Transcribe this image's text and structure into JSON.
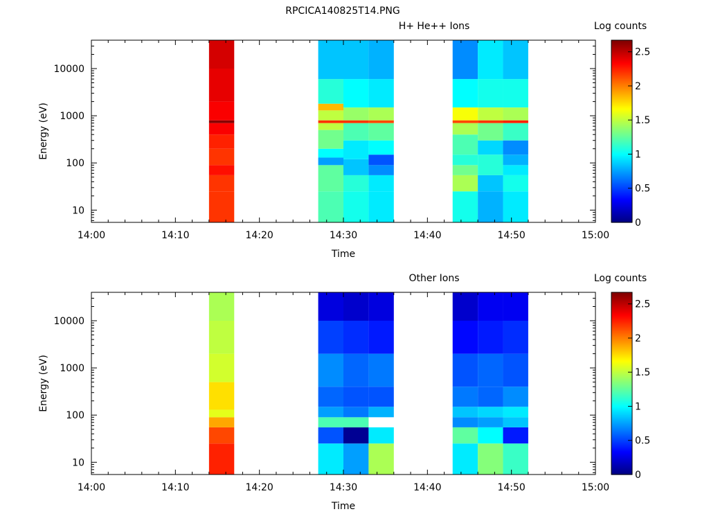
{
  "figure_title": "RPCICA140825T14.PNG",
  "chart_data": [
    {
      "type": "heatmap",
      "title": "H+ He++ Ions",
      "xlabel": "Time",
      "ylabel": "Energy (eV)",
      "x_ticks": [
        "14:00",
        "14:10",
        "14:20",
        "14:30",
        "14:40",
        "14:50",
        "15:00"
      ],
      "y_ticks": [
        "10",
        "100",
        "1000",
        "10000"
      ],
      "y_scale": "log",
      "ylim": [
        5.5,
        40000
      ],
      "colorbar": {
        "label": "Log counts",
        "range": [
          0,
          2.67
        ],
        "ticks": [
          "0",
          "0.5",
          "1",
          "1.5",
          "2",
          "2.5"
        ]
      },
      "columns": [
        {
          "start": "14:14",
          "end": "14:17",
          "bands": [
            [
              5.5,
              25,
              2.2
            ],
            [
              25,
              55,
              2.2
            ],
            [
              55,
              90,
              2.3
            ],
            [
              90,
              200,
              2.2
            ],
            [
              200,
              400,
              2.25
            ],
            [
              400,
              700,
              2.35
            ],
            [
              700,
              800,
              2.65
            ],
            [
              800,
              2000,
              2.35
            ],
            [
              2000,
              10000,
              2.4
            ],
            [
              10000,
              40000,
              2.45
            ]
          ]
        },
        {
          "start": "14:27",
          "end": "14:30",
          "bands": [
            [
              5.5,
              25,
              1.2
            ],
            [
              25,
              90,
              1.25
            ],
            [
              90,
              130,
              0.75
            ],
            [
              130,
              200,
              1.0
            ],
            [
              200,
              500,
              1.3
            ],
            [
              500,
              700,
              1.5
            ],
            [
              700,
              800,
              2.2
            ],
            [
              800,
              1300,
              1.5
            ],
            [
              1300,
              1800,
              1.85
            ],
            [
              1800,
              6000,
              1.1
            ],
            [
              6000,
              40000,
              0.85
            ]
          ]
        },
        {
          "start": "14:30",
          "end": "14:33",
          "bands": [
            [
              5.5,
              25,
              1.05
            ],
            [
              25,
              55,
              1.1
            ],
            [
              55,
              120,
              0.85
            ],
            [
              120,
              300,
              0.95
            ],
            [
              300,
              700,
              1.2
            ],
            [
              700,
              800,
              2.2
            ],
            [
              800,
              1500,
              1.4
            ],
            [
              1500,
              6000,
              1.0
            ],
            [
              6000,
              40000,
              0.85
            ]
          ]
        },
        {
          "start": "14:33",
          "end": "14:36",
          "bands": [
            [
              5.5,
              25,
              0.95
            ],
            [
              25,
              55,
              0.95
            ],
            [
              55,
              90,
              0.7
            ],
            [
              90,
              150,
              0.55
            ],
            [
              150,
              300,
              1.0
            ],
            [
              300,
              700,
              1.25
            ],
            [
              700,
              800,
              2.15
            ],
            [
              800,
              1500,
              1.45
            ],
            [
              1500,
              6000,
              0.95
            ],
            [
              6000,
              40000,
              0.8
            ]
          ]
        },
        {
          "start": "14:43",
          "end": "14:46",
          "bands": [
            [
              5.5,
              25,
              1.05
            ],
            [
              25,
              55,
              1.45
            ],
            [
              55,
              90,
              1.3
            ],
            [
              90,
              150,
              1.1
            ],
            [
              150,
              400,
              1.2
            ],
            [
              400,
              700,
              1.45
            ],
            [
              700,
              800,
              2.15
            ],
            [
              800,
              1500,
              1.65
            ],
            [
              1500,
              6000,
              1.0
            ],
            [
              6000,
              40000,
              0.7
            ]
          ]
        },
        {
          "start": "14:46",
          "end": "14:49",
          "bands": [
            [
              5.5,
              25,
              0.8
            ],
            [
              25,
              55,
              0.85
            ],
            [
              55,
              150,
              1.1
            ],
            [
              150,
              300,
              0.9
            ],
            [
              300,
              700,
              1.3
            ],
            [
              700,
              800,
              2.2
            ],
            [
              800,
              1500,
              1.5
            ],
            [
              1500,
              6000,
              1.05
            ],
            [
              6000,
              40000,
              0.95
            ]
          ]
        },
        {
          "start": "14:49",
          "end": "14:52",
          "bands": [
            [
              5.5,
              25,
              0.95
            ],
            [
              25,
              55,
              1.05
            ],
            [
              55,
              90,
              0.95
            ],
            [
              90,
              150,
              0.8
            ],
            [
              150,
              300,
              0.7
            ],
            [
              300,
              700,
              1.15
            ],
            [
              700,
              800,
              2.25
            ],
            [
              800,
              1500,
              1.45
            ],
            [
              1500,
              6000,
              1.05
            ],
            [
              6000,
              40000,
              0.85
            ]
          ]
        }
      ]
    },
    {
      "type": "heatmap",
      "title": "Other Ions",
      "xlabel": "Time",
      "ylabel": "Energy (eV)",
      "x_ticks": [
        "14:00",
        "14:10",
        "14:20",
        "14:30",
        "14:40",
        "14:50",
        "15:00"
      ],
      "y_ticks": [
        "10",
        "100",
        "1000",
        "10000"
      ],
      "y_scale": "log",
      "ylim": [
        5.5,
        40000
      ],
      "colorbar": {
        "label": "Log counts",
        "range": [
          0,
          2.67
        ],
        "ticks": [
          "0",
          "0.5",
          "1",
          "1.5",
          "2",
          "2.5"
        ]
      },
      "columns": [
        {
          "start": "14:14",
          "end": "14:17",
          "bands": [
            [
              5.5,
              25,
              2.25
            ],
            [
              25,
              55,
              2.15
            ],
            [
              55,
              90,
              1.9
            ],
            [
              90,
              130,
              1.6
            ],
            [
              130,
              500,
              1.75
            ],
            [
              500,
              2000,
              1.55
            ],
            [
              2000,
              10000,
              1.5
            ],
            [
              10000,
              40000,
              1.45
            ]
          ]
        },
        {
          "start": "14:27",
          "end": "14:30",
          "bands": [
            [
              5.5,
              25,
              0.95
            ],
            [
              25,
              55,
              0.55
            ],
            [
              55,
              90,
              1.2
            ],
            [
              90,
              150,
              0.75
            ],
            [
              150,
              400,
              0.6
            ],
            [
              400,
              2000,
              0.7
            ],
            [
              2000,
              10000,
              0.5
            ],
            [
              10000,
              40000,
              0.25
            ]
          ]
        },
        {
          "start": "14:30",
          "end": "14:33",
          "bands": [
            [
              5.5,
              25,
              0.75
            ],
            [
              25,
              55,
              0.05
            ],
            [
              55,
              90,
              1.2
            ],
            [
              90,
              150,
              0.65
            ],
            [
              150,
              400,
              0.55
            ],
            [
              400,
              2000,
              0.6
            ],
            [
              2000,
              10000,
              0.45
            ],
            [
              10000,
              40000,
              0.2
            ]
          ]
        },
        {
          "start": "14:33",
          "end": "14:36",
          "bands": [
            [
              5.5,
              25,
              1.45
            ],
            [
              25,
              55,
              0.95
            ],
            [
              90,
              150,
              0.8
            ],
            [
              150,
              400,
              0.55
            ],
            [
              400,
              2000,
              0.65
            ],
            [
              2000,
              10000,
              0.4
            ],
            [
              10000,
              40000,
              0.25
            ]
          ]
        },
        {
          "start": "14:43",
          "end": "14:46",
          "bands": [
            [
              5.5,
              25,
              0.95
            ],
            [
              25,
              55,
              1.25
            ],
            [
              55,
              90,
              0.7
            ],
            [
              90,
              150,
              0.85
            ],
            [
              150,
              400,
              0.65
            ],
            [
              400,
              2000,
              0.55
            ],
            [
              2000,
              10000,
              0.35
            ],
            [
              10000,
              40000,
              0.2
            ]
          ]
        },
        {
          "start": "14:46",
          "end": "14:49",
          "bands": [
            [
              5.5,
              25,
              1.35
            ],
            [
              25,
              55,
              1.0
            ],
            [
              55,
              90,
              0.75
            ],
            [
              90,
              150,
              0.9
            ],
            [
              150,
              400,
              0.6
            ],
            [
              400,
              2000,
              0.6
            ],
            [
              2000,
              10000,
              0.4
            ],
            [
              10000,
              40000,
              0.3
            ]
          ]
        },
        {
          "start": "14:49",
          "end": "14:52",
          "bands": [
            [
              5.5,
              25,
              1.15
            ],
            [
              25,
              55,
              0.4
            ],
            [
              55,
              90,
              0.85
            ],
            [
              90,
              150,
              0.95
            ],
            [
              150,
              400,
              0.7
            ],
            [
              400,
              2000,
              0.55
            ],
            [
              2000,
              10000,
              0.45
            ],
            [
              10000,
              40000,
              0.3
            ]
          ]
        }
      ]
    }
  ]
}
